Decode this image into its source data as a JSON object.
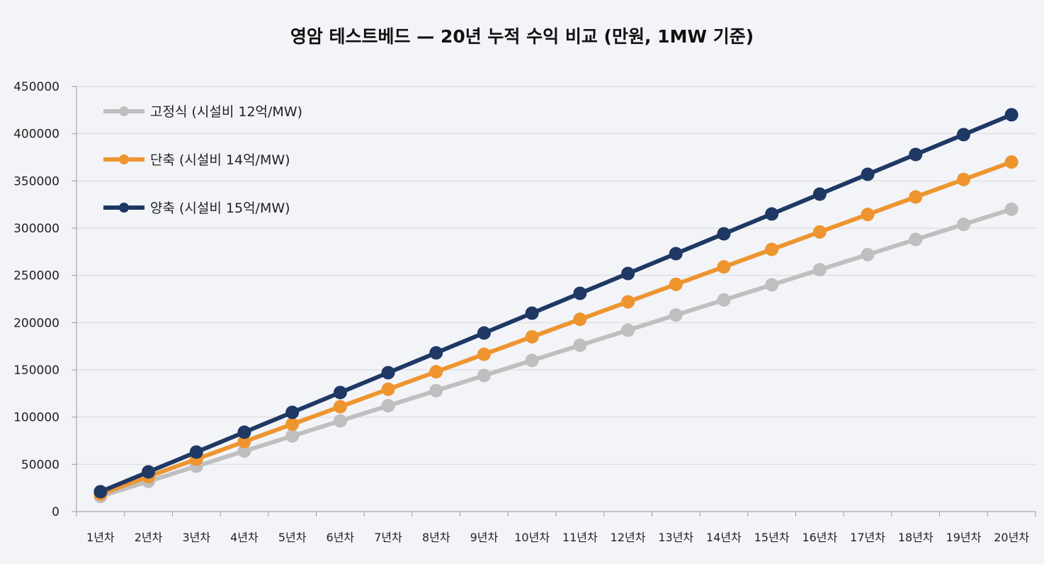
{
  "chart_data": {
    "type": "line",
    "title": "영암 테스트베드 — 20년 누적 수익 비교 (만원, 1MW 기준)",
    "xlabel": "",
    "ylabel": "",
    "ylim": [
      0,
      450000
    ],
    "yticks": [
      0,
      50000,
      100000,
      150000,
      200000,
      250000,
      300000,
      350000,
      400000,
      450000
    ],
    "grid": true,
    "legend_position": "top-left",
    "categories": [
      "1년차",
      "2년차",
      "3년차",
      "4년차",
      "5년차",
      "6년차",
      "7년차",
      "8년차",
      "9년차",
      "10년차",
      "11년차",
      "12년차",
      "13년차",
      "14년차",
      "15년차",
      "16년차",
      "17년차",
      "18년차",
      "19년차",
      "20년차"
    ],
    "series": [
      {
        "name": "고정식 (시설비 12억/MW)",
        "color": "#bfbfbf",
        "values": [
          16000,
          32000,
          48000,
          64000,
          80000,
          96000,
          112000,
          128000,
          144000,
          160000,
          176000,
          192000,
          208000,
          224000,
          240000,
          256000,
          272000,
          288000,
          304000,
          320000
        ]
      },
      {
        "name": "단축 (시설비 14억/MW)",
        "color": "#ee9530",
        "values": [
          18500,
          37000,
          55500,
          74000,
          92500,
          111000,
          129500,
          148000,
          166500,
          185000,
          203500,
          222000,
          240500,
          259000,
          277500,
          296000,
          314500,
          333000,
          351500,
          370000
        ]
      },
      {
        "name": "양축 (시설비 15억/MW)",
        "color": "#1f3864",
        "values": [
          21000,
          42000,
          63000,
          84000,
          105000,
          126000,
          147000,
          168000,
          189000,
          210000,
          231000,
          252000,
          273000,
          294000,
          315000,
          336000,
          357000,
          378000,
          399000,
          420000
        ]
      }
    ]
  }
}
